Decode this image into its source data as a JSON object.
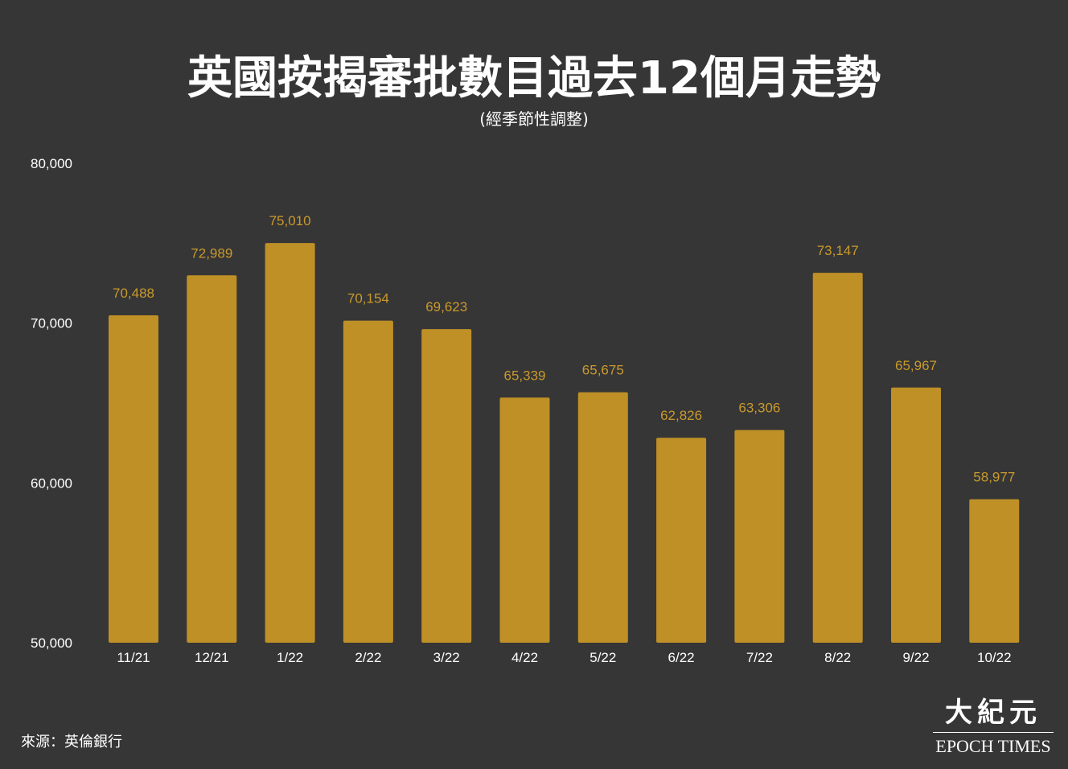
{
  "title": "英國按揭審批數目過去12個月走勢",
  "subtitle": "(經季節性調整)",
  "source": "來源：英倫銀行",
  "logo": {
    "cn": "大紀元",
    "en": "EPOCH TIMES"
  },
  "colors": {
    "background": "#363636",
    "bar": "#bf9026",
    "label": "#c9992c",
    "text": "#ffffff"
  },
  "chart_data": {
    "type": "bar",
    "title": "英國按揭審批數目過去12個月走勢",
    "subtitle": "(經季節性調整)",
    "xlabel": "",
    "ylabel": "",
    "ylim": [
      50000,
      80000
    ],
    "yticks": [
      50000,
      60000,
      70000,
      80000
    ],
    "ytick_labels": [
      "50,000",
      "60,000",
      "70,000",
      "80,000"
    ],
    "grid": false,
    "categories": [
      "11/21",
      "12/21",
      "1/22",
      "2/22",
      "3/22",
      "4/22",
      "5/22",
      "6/22",
      "7/22",
      "8/22",
      "9/22",
      "10/22"
    ],
    "values": [
      70488,
      72989,
      75010,
      70154,
      69623,
      65339,
      65675,
      62826,
      63306,
      73147,
      65967,
      58977
    ],
    "value_labels": [
      "70,488",
      "72,989",
      "75,010",
      "70,154",
      "69,623",
      "65,339",
      "65,675",
      "62,826",
      "63,306",
      "73,147",
      "65,967",
      "58,977"
    ]
  }
}
